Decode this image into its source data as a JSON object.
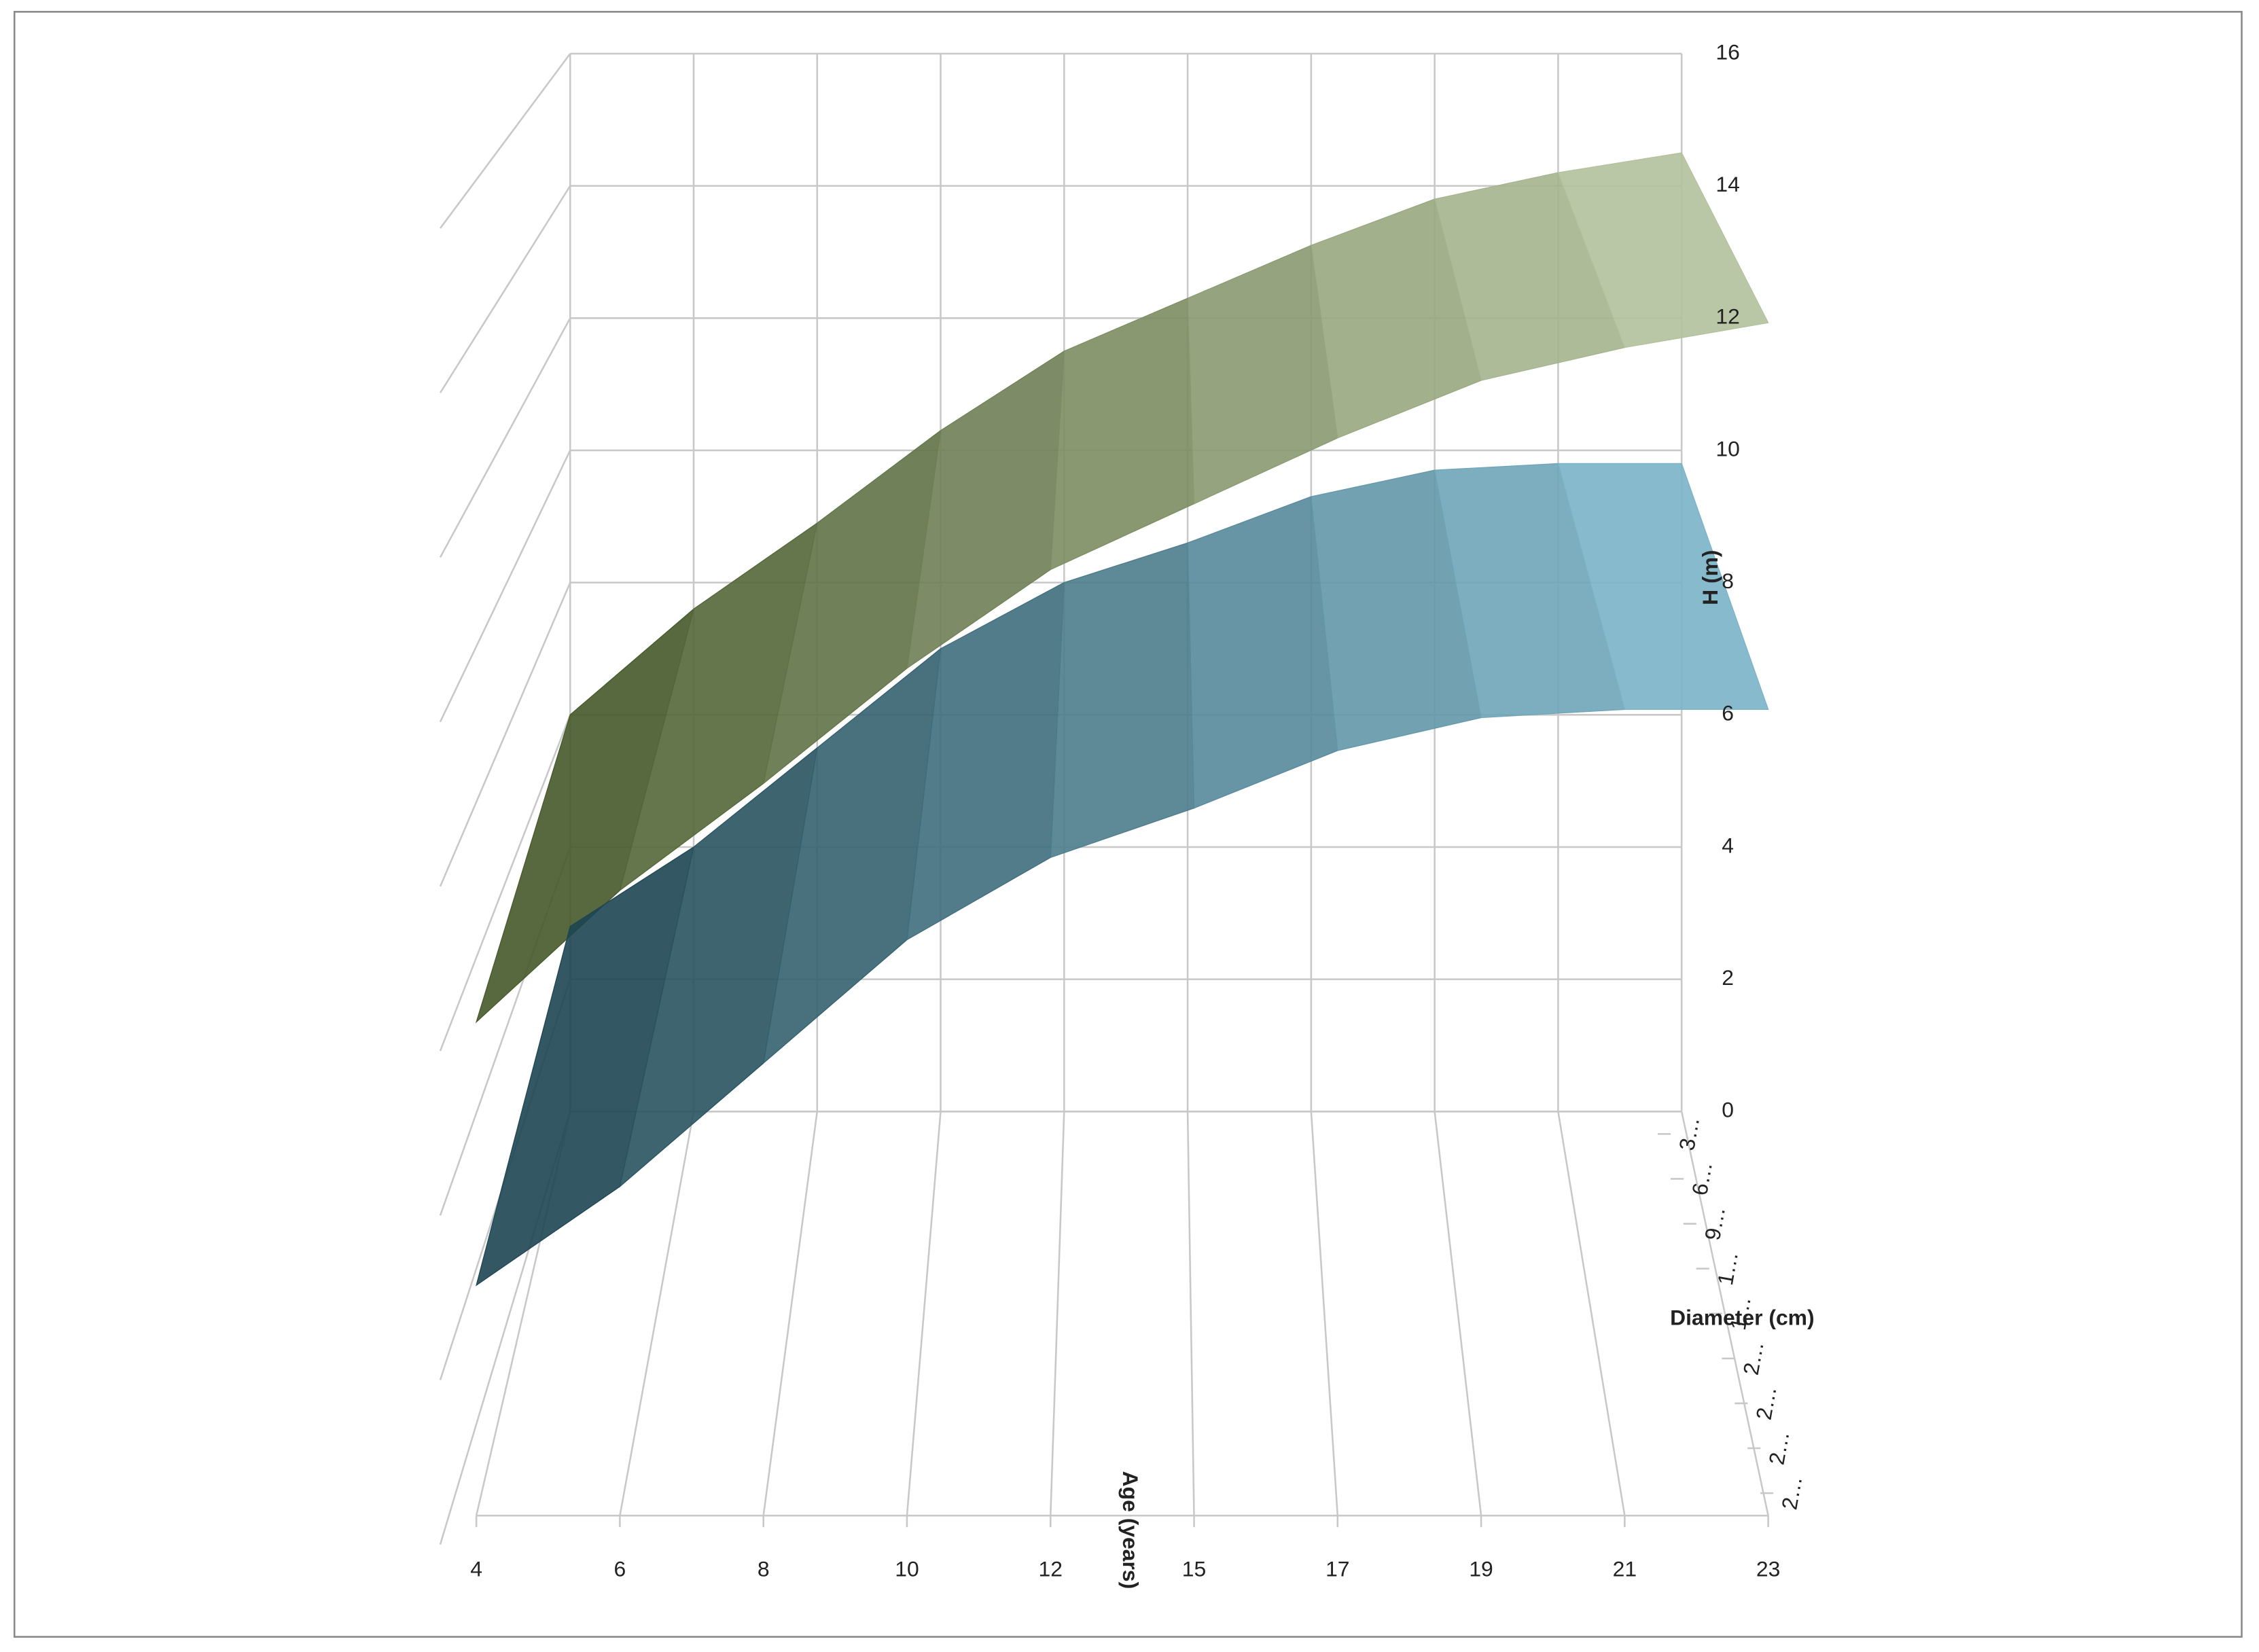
{
  "chart_data": {
    "type": "surface",
    "z_label": "H (m)",
    "x_label": "Age (years)",
    "y_label": "Diameter (cm)",
    "categories": [
      4,
      6,
      8,
      10,
      12,
      15,
      17,
      19,
      21,
      23
    ],
    "depth_categories": [
      "3…",
      "6…",
      "9…",
      "1…",
      "1…",
      "2…",
      "2…",
      "2…",
      "2…"
    ],
    "zlim": [
      0,
      16
    ],
    "zticks": [
      0,
      2,
      4,
      6,
      8,
      10,
      12,
      14,
      16
    ],
    "grid": true,
    "series": [
      {
        "colors": [
          "#46592a",
          "#b3c19c"
        ],
        "values": [
          6.0,
          7.6,
          8.9,
          10.3,
          11.5,
          12.3,
          13.1,
          13.8,
          14.2,
          14.5
        ]
      },
      {
        "colors": [
          "#1d4552",
          "#7ab3c6"
        ],
        "values": [
          2.8,
          4.0,
          5.5,
          7.0,
          8.0,
          8.6,
          9.3,
          9.7,
          9.8,
          9.8
        ]
      }
    ]
  }
}
